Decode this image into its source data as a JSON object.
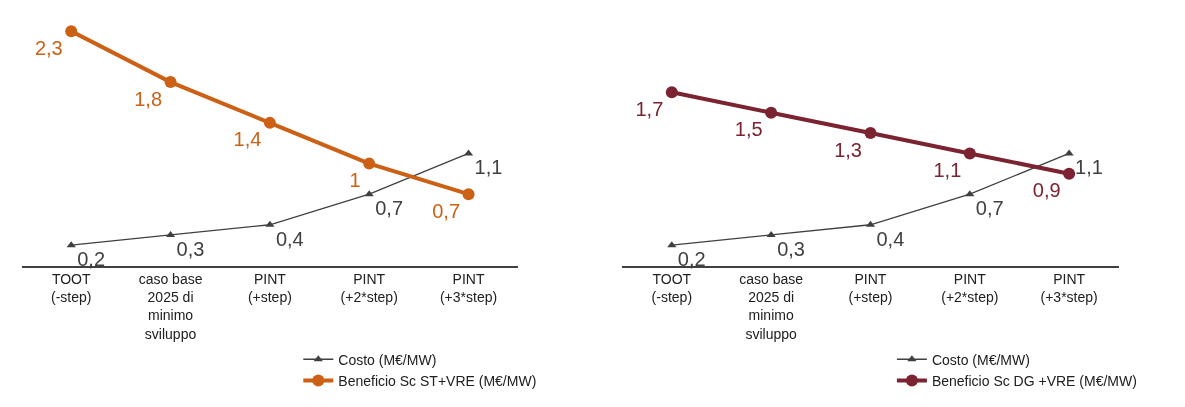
{
  "chart_data": [
    {
      "type": "line",
      "categories": [
        "TOOT\n(-step)",
        "caso base\n2025 di\nminimo\nsviluppo",
        "PINT\n(+step)",
        "PINT\n(+2*step)",
        "PINT\n(+3*step)"
      ],
      "legend": "bottom right",
      "series": [
        {
          "name": "Costo (M€/MW)",
          "color": "#404040",
          "values": [
            0.2,
            0.3,
            0.4,
            0.7,
            1.1
          ],
          "value_labels": [
            "0,2",
            "0,3",
            "0,4",
            "0,7",
            "1,1"
          ],
          "marker": "triangle"
        },
        {
          "name": "Beneficio Sc ST+VRE (M€/MW)",
          "color": "#cc6115",
          "values": [
            2.3,
            1.8,
            1.4,
            1,
            0.7
          ],
          "value_labels": [
            "2,3",
            "1,8",
            "1,4",
            "1",
            "0,7"
          ],
          "marker": "circle"
        }
      ]
    },
    {
      "type": "line",
      "categories": [
        "TOOT\n(-step)",
        "caso base\n2025 di\nminimo\nsviluppo",
        "PINT\n(+step)",
        "PINT\n(+2*step)",
        "PINT\n(+3*step)"
      ],
      "legend": "bottom right",
      "series": [
        {
          "name": "Costo (M€/MW)",
          "color": "#404040",
          "values": [
            0.2,
            0.3,
            0.4,
            0.7,
            1.1
          ],
          "value_labels": [
            "0,2",
            "0,3",
            "0,4",
            "0,7",
            "1,1"
          ],
          "marker": "triangle"
        },
        {
          "name": "Beneficio Sc DG +VRE (M€/MW)",
          "color": "#7b2330",
          "values": [
            1.7,
            1.5,
            1.3,
            1.1,
            0.9
          ],
          "value_labels": [
            "1,7",
            "1,5",
            "1,3",
            "1,1",
            "0,9"
          ],
          "marker": "circle"
        }
      ]
    }
  ]
}
